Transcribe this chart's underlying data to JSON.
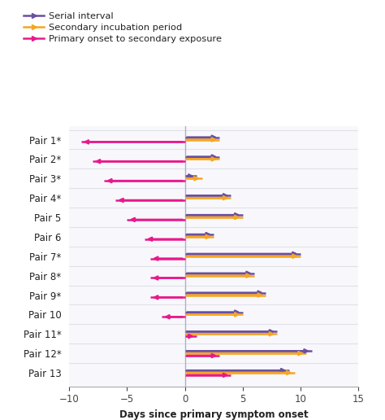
{
  "pairs": [
    "Pair 1*",
    "Pair 2*",
    "Pair 3*",
    "Pair 4*",
    "Pair 5",
    "Pair 6",
    "Pair 7*",
    "Pair 8*",
    "Pair 9*",
    "Pair 10",
    "Pair 11*",
    "Pair 12*",
    "Pair 13"
  ],
  "serial_interval_end": [
    3,
    3,
    1,
    4,
    5,
    2.5,
    10,
    6,
    7,
    5,
    8,
    11,
    9
  ],
  "secondary_incubation_end": [
    3,
    3,
    1.5,
    4,
    5,
    2.5,
    10,
    6,
    7,
    5,
    8,
    10.5,
    9.5
  ],
  "primary_onset_to_exposure_end": [
    -9,
    -8,
    -7,
    -6,
    -5,
    -3.5,
    -3,
    -3,
    -3,
    -2,
    1,
    3,
    4
  ],
  "serial_color": "#6b4fa0",
  "incubation_color": "#f5a623",
  "onset_exposure_color": "#e8198b",
  "xlim": [
    -10,
    15
  ],
  "xlabel": "Days since primary symptom onset",
  "legend_labels": [
    "Serial interval",
    "Secondary incubation period",
    "Primary onset to secondary exposure"
  ],
  "bg_color": "#ffffff",
  "plot_bg": "#f8f8fc",
  "grid_color": "#e0e0e8",
  "vline_color": "#b0b0c8"
}
